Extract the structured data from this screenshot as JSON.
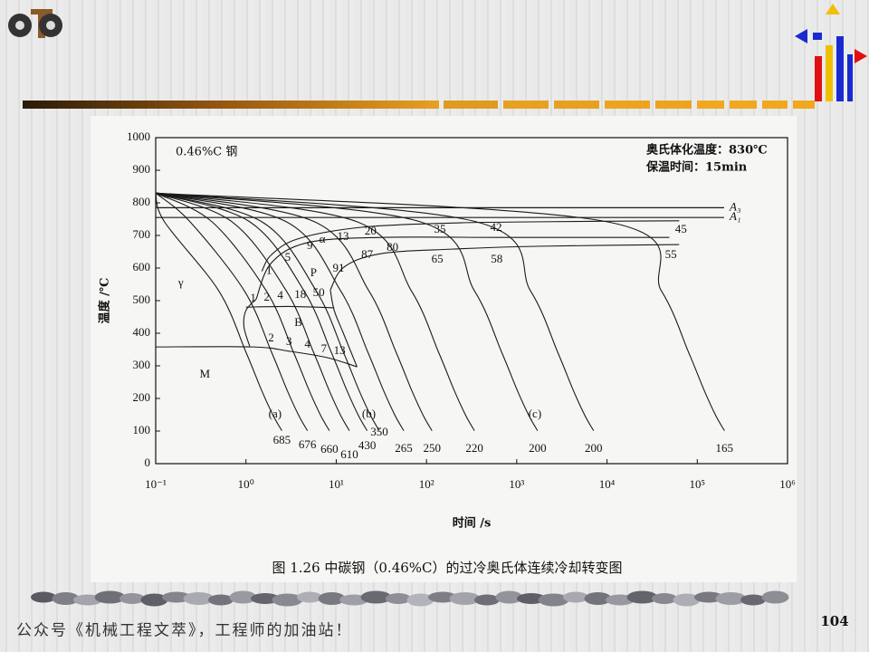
{
  "footer": "公众号《机械工程文萃》，工程师的加油站！",
  "page_number": "104",
  "chart_data": {
    "type": "line",
    "title": "0.46%C 钢",
    "notes": [
      "奥氏体化温度：830℃",
      "保温时间：15min"
    ],
    "xlabel": "时间 /s",
    "ylabel": "温度 /℃",
    "caption": "图 1.26  中碳钢（0.46%C）的过冷奥氏体连续冷却转变图",
    "xscale": "log",
    "xlim": [
      0.1,
      1000000
    ],
    "ylim": [
      0,
      1000
    ],
    "xticks": [
      {
        "value": 0.1,
        "label": "10⁻¹"
      },
      {
        "value": 1,
        "label": "10⁰"
      },
      {
        "value": 10,
        "label": "10¹"
      },
      {
        "value": 100,
        "label": "10²"
      },
      {
        "value": 1000,
        "label": "10³"
      },
      {
        "value": 10000,
        "label": "10⁴"
      },
      {
        "value": 100000,
        "label": "10⁵"
      },
      {
        "value": 1000000,
        "label": "10⁶"
      }
    ],
    "yticks": [
      0,
      100,
      200,
      300,
      400,
      500,
      600,
      700,
      800,
      900,
      1000
    ],
    "color": "#1a1a1a",
    "ref_lines": [
      {
        "label": "A₃",
        "value": 785
      },
      {
        "label": "A₁",
        "value": 755
      }
    ],
    "series": [
      {
        "x": [
          0.1,
          0.125,
          0.5,
          1,
          1.5,
          2,
          2.5
        ],
        "y": [
          830,
          742,
          530,
          342,
          223,
          148,
          101
        ]
      },
      {
        "x": [
          0.1,
          0.24,
          0.96,
          1.92,
          2.88,
          3.84,
          4.8
        ],
        "y": [
          830,
          742,
          530,
          342,
          223,
          148,
          101
        ]
      },
      {
        "x": [
          0.1,
          0.42,
          1.68,
          3.36,
          5.04,
          6.72,
          8.4
        ],
        "y": [
          830,
          742,
          530,
          342,
          223,
          148,
          101
        ]
      },
      {
        "x": [
          0.1,
          0.7,
          2.8,
          5.6,
          8.4,
          11.2,
          14
        ],
        "y": [
          830,
          742,
          530,
          342,
          223,
          148,
          101
        ]
      },
      {
        "x": [
          0.1,
          1.1,
          4.4,
          8.8,
          13.2,
          17.6,
          22
        ],
        "y": [
          830,
          742,
          530,
          342,
          223,
          148,
          101
        ]
      },
      {
        "x": [
          0.1,
          1.5,
          6,
          12,
          18,
          24,
          30
        ],
        "y": [
          830,
          742,
          530,
          342,
          223,
          148,
          101
        ]
      },
      {
        "x": [
          0.1,
          2.8,
          11.2,
          22.4,
          33.6,
          44.8,
          56
        ],
        "y": [
          830,
          742,
          530,
          342,
          223,
          148,
          101
        ]
      },
      {
        "x": [
          0.1,
          5.75,
          23,
          46,
          69,
          92,
          115
        ],
        "y": [
          830,
          742,
          530,
          342,
          223,
          148,
          101
        ]
      },
      {
        "x": [
          0.1,
          17,
          68,
          136,
          204,
          272,
          340
        ],
        "y": [
          830,
          742,
          530,
          342,
          223,
          148,
          101
        ]
      },
      {
        "x": [
          0.1,
          85,
          340,
          680,
          1020,
          1360,
          1700
        ],
        "y": [
          830,
          742,
          530,
          342,
          223,
          148,
          101
        ]
      },
      {
        "x": [
          0.1,
          355,
          1420,
          2840,
          4260,
          5680,
          7100
        ],
        "y": [
          830,
          742,
          530,
          342,
          223,
          148,
          101
        ]
      },
      {
        "x": [
          0.1,
          10000,
          40000,
          80000,
          120000,
          160000,
          200000
        ],
        "y": [
          830,
          742,
          530,
          342,
          223,
          148,
          101
        ]
      },
      {
        "x": [
          1.5,
          1.9,
          3.8,
          19,
          190,
          1900,
          63000
        ],
        "y": [
          590,
          640,
          690,
          725,
          738,
          742,
          745
        ]
      },
      {
        "x": [
          1.3,
          1.9,
          4.8,
          31,
          620,
          49000
        ],
        "y": [
          505,
          615,
          678,
          694,
          694,
          694
        ]
      },
      {
        "x": [
          8.6,
          12.2,
          31,
          190,
          1900,
          63000
        ],
        "y": [
          533,
          603,
          644,
          658,
          667,
          672
        ]
      },
      {
        "x": [
          1.3,
          1.0,
          0.95,
          1.1
        ],
        "y": [
          505,
          470,
          420,
          360
        ]
      },
      {
        "x": [
          1.0,
          3,
          9.5
        ],
        "y": [
          480,
          482,
          478
        ]
      },
      {
        "x": [
          8.6,
          9.5,
          12,
          17
        ],
        "y": [
          533,
          470,
          400,
          297
        ]
      },
      {
        "x": [
          0.1,
          1.2,
          3,
          8,
          17
        ],
        "y": [
          358,
          358,
          345,
          325,
          297
        ]
      }
    ],
    "annotations": [
      {
        "text": "1",
        "x": 1.8,
        "y": 590
      },
      {
        "text": "5",
        "x": 2.9,
        "y": 631
      },
      {
        "text": "9",
        "x": 5.1,
        "y": 667
      },
      {
        "text": "α",
        "x": 7.0,
        "y": 686
      },
      {
        "text": "13",
        "x": 11.9,
        "y": 694
      },
      {
        "text": "20",
        "x": 24,
        "y": 711
      },
      {
        "text": "35",
        "x": 141,
        "y": 717
      },
      {
        "text": "42",
        "x": 590,
        "y": 722
      },
      {
        "text": "45",
        "x": 66000,
        "y": 717
      },
      {
        "text": "87",
        "x": 22,
        "y": 639
      },
      {
        "text": "80",
        "x": 42,
        "y": 661
      },
      {
        "text": "65",
        "x": 132,
        "y": 625
      },
      {
        "text": "58",
        "x": 600,
        "y": 625
      },
      {
        "text": "55",
        "x": 51000,
        "y": 639
      },
      {
        "text": "P",
        "x": 5.6,
        "y": 583
      },
      {
        "text": "91",
        "x": 10.6,
        "y": 597
      },
      {
        "text": "γ",
        "x": 0.19,
        "y": 553
      },
      {
        "text": "1",
        "x": 1.2,
        "y": 506
      },
      {
        "text": "2",
        "x": 1.7,
        "y": 508
      },
      {
        "text": "4",
        "x": 2.4,
        "y": 514
      },
      {
        "text": "18",
        "x": 4.0,
        "y": 517
      },
      {
        "text": "50",
        "x": 6.4,
        "y": 522
      },
      {
        "text": "B",
        "x": 3.8,
        "y": 431
      },
      {
        "text": "2",
        "x": 1.9,
        "y": 383
      },
      {
        "text": "3",
        "x": 3.0,
        "y": 372
      },
      {
        "text": "4",
        "x": 4.8,
        "y": 364
      },
      {
        "text": "7",
        "x": 7.3,
        "y": 350
      },
      {
        "text": "13",
        "x": 10.9,
        "y": 344
      },
      {
        "text": "M",
        "x": 0.35,
        "y": 272
      },
      {
        "text": "(a)",
        "x": 2.1,
        "y": 150
      },
      {
        "text": "(b)",
        "x": 23,
        "y": 150
      },
      {
        "text": "(c)",
        "x": 1590,
        "y": 150
      },
      {
        "text": "685",
        "x": 2.5,
        "y": 69
      },
      {
        "text": "676",
        "x": 4.8,
        "y": 56
      },
      {
        "text": "660",
        "x": 8.4,
        "y": 42
      },
      {
        "text": "610",
        "x": 14,
        "y": 25
      },
      {
        "text": "430",
        "x": 22,
        "y": 53
      },
      {
        "text": "350",
        "x": 30,
        "y": 94
      },
      {
        "text": "265",
        "x": 56,
        "y": 44
      },
      {
        "text": "250",
        "x": 115,
        "y": 44
      },
      {
        "text": "220",
        "x": 340,
        "y": 44
      },
      {
        "text": "200",
        "x": 1700,
        "y": 44
      },
      {
        "text": "200",
        "x": 7100,
        "y": 44
      },
      {
        "text": "165",
        "x": 200000,
        "y": 44
      }
    ]
  }
}
